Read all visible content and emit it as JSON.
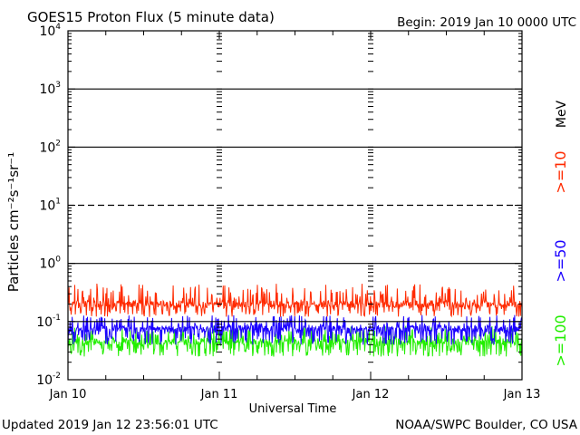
{
  "header": {
    "title": "GOES15 Proton Flux (5 minute data)",
    "begin": "Begin: 2019 Jan 10 0000 UTC"
  },
  "footer": {
    "updated": "Updated 2019 Jan 12 23:56:01 UTC",
    "credit": "NOAA/SWPC Boulder, CO USA"
  },
  "chart_data": {
    "type": "line",
    "title": "GOES15 Proton Flux (5 minute data)",
    "xlabel": "Universal Time",
    "ylabel": "Particles cm⁻²s⁻¹sr⁻¹",
    "yscale": "log",
    "ylim": [
      0.01,
      10000
    ],
    "xlim": [
      "2019-01-10 00:00",
      "2019-01-13 00:00"
    ],
    "x_tick_labels": [
      "Jan 10",
      "Jan 11",
      "Jan 12",
      "Jan 13"
    ],
    "y_ticks": [
      0.01,
      0.1,
      1,
      10,
      100,
      1000,
      10000
    ],
    "y_tick_labels": [
      {
        "base": "10",
        "exp": "-2"
      },
      {
        "base": "10",
        "exp": "-1"
      },
      {
        "base": "10",
        "exp": "0"
      },
      {
        "base": "10",
        "exp": "1"
      },
      {
        "base": "10",
        "exp": "2"
      },
      {
        "base": "10",
        "exp": "3"
      },
      {
        "base": "10",
        "exp": "4"
      }
    ],
    "reference_lines": [
      {
        "y": 1000,
        "style": "solid"
      },
      {
        "y": 100,
        "style": "solid"
      },
      {
        "y": 10,
        "style": "dashed"
      },
      {
        "y": 1,
        "style": "solid"
      },
      {
        "y": 0.1,
        "style": "solid"
      }
    ],
    "legend_unit": "MeV",
    "series": [
      {
        "name": ">=10",
        "color": "#ff2a00",
        "approx_range": [
          0.12,
          0.45
        ],
        "typical": 0.2
      },
      {
        "name": ">=50",
        "color": "#1a00ff",
        "approx_range": [
          0.04,
          0.13
        ],
        "typical": 0.075
      },
      {
        "name": ">=100",
        "color": "#22ee00",
        "approx_range": [
          0.025,
          0.085
        ],
        "typical": 0.045
      }
    ],
    "grid": false,
    "legend_position": "right (vertical)"
  }
}
